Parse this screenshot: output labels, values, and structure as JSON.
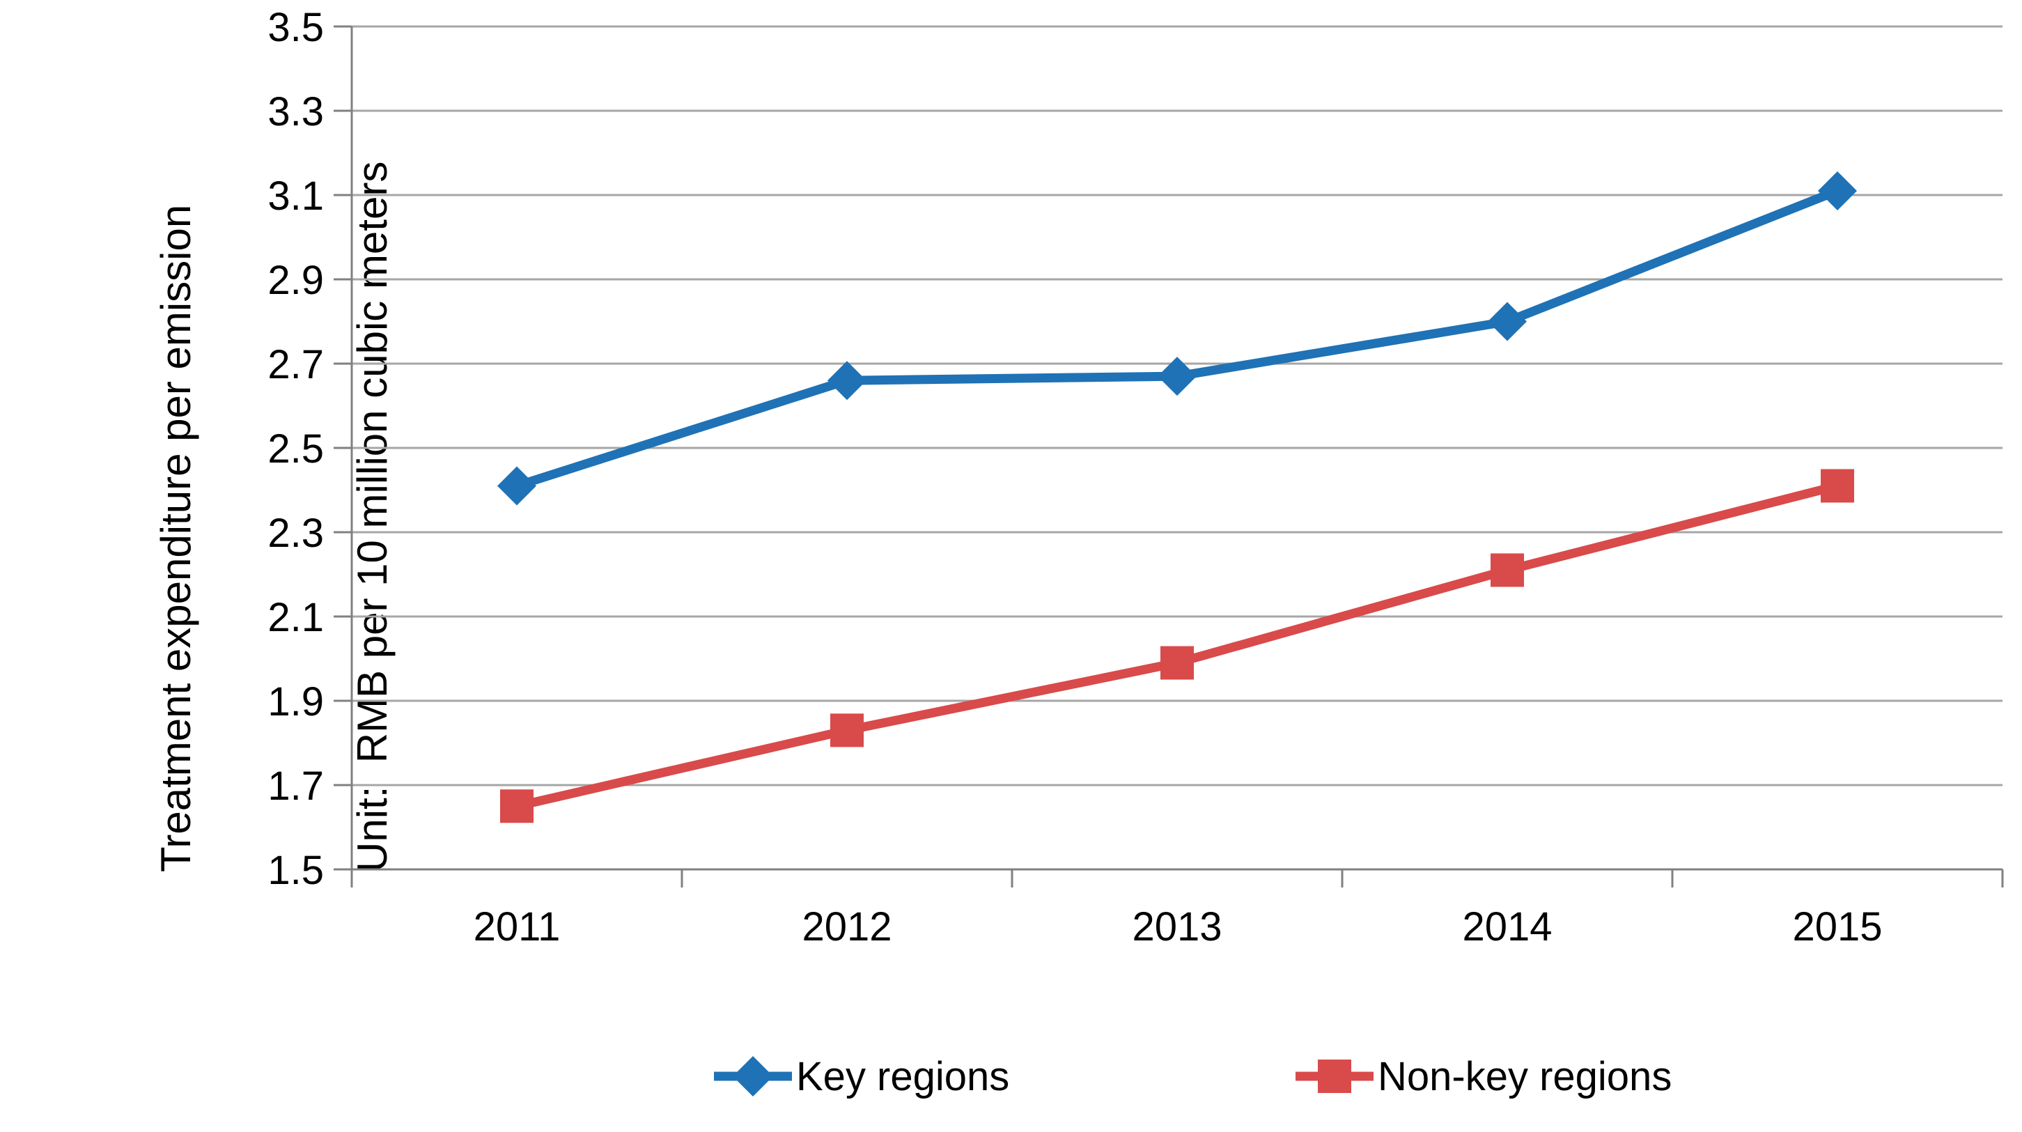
{
  "chart_data": {
    "type": "line",
    "categories": [
      "2011",
      "2012",
      "2013",
      "2014",
      "2015"
    ],
    "series": [
      {
        "name": "Key regions",
        "color": "#1F72B5",
        "marker": "diamond",
        "values": [
          2.41,
          2.66,
          2.67,
          2.8,
          3.11
        ]
      },
      {
        "name": "Non-key regions",
        "color": "#D94A4A",
        "marker": "square",
        "values": [
          1.65,
          1.83,
          1.99,
          2.21,
          2.41
        ]
      }
    ],
    "ylabel_lines": [
      "Treatment expenditure per emission",
      "Unit:  RMB per 10 million cubic meters"
    ],
    "xlabel": "",
    "title": "",
    "ylim": [
      1.5,
      3.5
    ],
    "yticks": [
      1.5,
      1.7,
      1.9,
      2.1,
      2.3,
      2.5,
      2.7,
      2.9,
      3.1,
      3.3,
      3.5
    ],
    "grid": "horizontal",
    "gridline_color": "#A6A6A6",
    "axis_color": "#808080",
    "tick_label_color": "#000000",
    "legend_position": "bottom"
  }
}
